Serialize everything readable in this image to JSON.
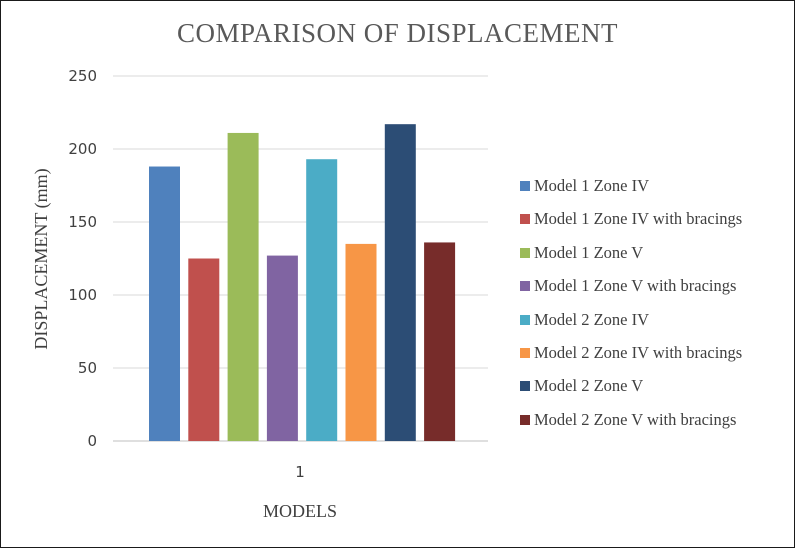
{
  "chart_data": {
    "type": "bar",
    "title": "COMPARISON OF DISPLACEMENT",
    "xlabel": "MODELS",
    "ylabel": "DISPLACEMENT (mm)",
    "categories": [
      "1"
    ],
    "ylim": [
      0,
      250
    ],
    "yticks": [
      "0",
      "50",
      "100",
      "150",
      "200",
      "250"
    ],
    "grid": true,
    "legend_position": "right",
    "series": [
      {
        "name": "Model  1 Zone IV",
        "values": [
          188
        ],
        "color": "#4F81BD"
      },
      {
        "name": "Model  1 Zone IV with bracings",
        "values": [
          125
        ],
        "color": "#C0504D"
      },
      {
        "name": "Model  1 Zone V",
        "values": [
          211
        ],
        "color": "#9BBB59"
      },
      {
        "name": "Model 1 Zone V with bracings",
        "values": [
          127
        ],
        "color": "#8064A2"
      },
      {
        "name": "Model  2 Zone IV",
        "values": [
          193
        ],
        "color": "#4BACC6"
      },
      {
        "name": "Model  2 Zone IV with bracings",
        "values": [
          135
        ],
        "color": "#F79646"
      },
      {
        "name": "Model  2 Zone V",
        "values": [
          217
        ],
        "color": "#2C4D75"
      },
      {
        "name": "Model  2 Zone V with bracings",
        "values": [
          136
        ],
        "color": "#772C2A"
      }
    ]
  }
}
